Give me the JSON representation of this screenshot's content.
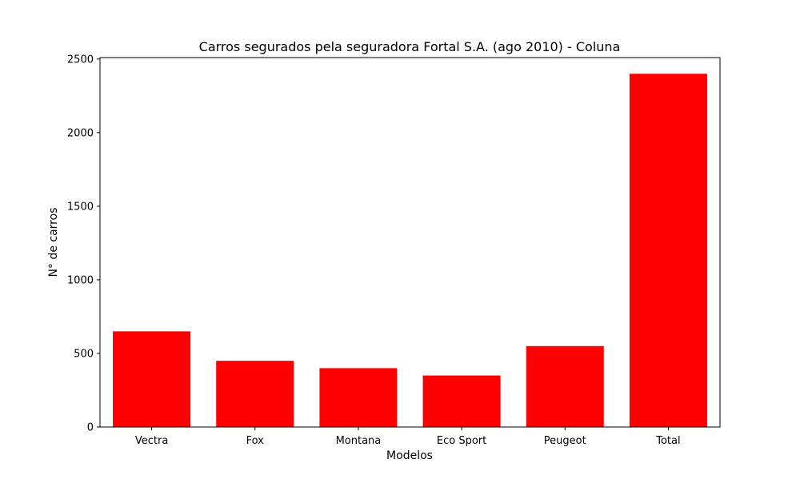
{
  "chart_data": {
    "type": "bar",
    "title": "Carros segurados pela seguradora Fortal S.A. (ago 2010) - Coluna",
    "xlabel": "Modelos",
    "ylabel": "N° de carros",
    "categories": [
      "Vectra",
      "Fox",
      "Montana",
      "Eco Sport",
      "Peugeot",
      "Total"
    ],
    "values": [
      650,
      450,
      400,
      350,
      550,
      2400
    ],
    "ylim": [
      0,
      2510
    ],
    "yticks": [
      0,
      500,
      1000,
      1500,
      2000,
      2500
    ],
    "grid": false,
    "legend": "none",
    "bar_color": "#ff0000"
  }
}
